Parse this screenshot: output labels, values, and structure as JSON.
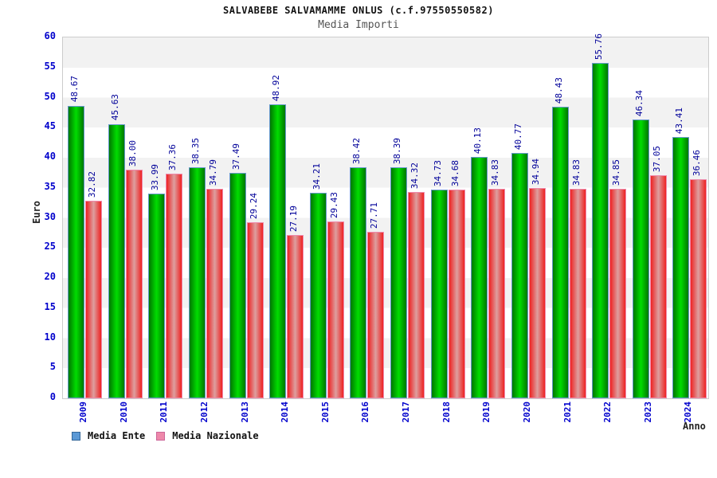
{
  "header": {
    "title": "SALVABEBE SALVAMAMME ONLUS (c.f.97550550582)",
    "subtitle": "Media Importi"
  },
  "legend": {
    "items": [
      {
        "label": "Media Ente",
        "swatch_fill": "#5b99d6",
        "swatch_border": "#336699"
      },
      {
        "label": "Media Nazionale",
        "swatch_fill": "#ee88aa",
        "swatch_border": "#cc6699"
      }
    ]
  },
  "axes": {
    "y_title": "Euro",
    "x_title": "Anno",
    "y_ticks": [
      0,
      5,
      10,
      15,
      20,
      25,
      30,
      35,
      40,
      45,
      50,
      55,
      60
    ]
  },
  "chart_data": {
    "type": "bar",
    "title": "Media Importi",
    "xlabel": "Anno",
    "ylabel": "Euro",
    "ylim": [
      0,
      60
    ],
    "ytick_step": 5,
    "grid": "horizontal-bands-every-5",
    "legend_position": "bottom-left",
    "value_labels": "rotated-90-above-bars",
    "categories": [
      "2009",
      "2010",
      "2011",
      "2012",
      "2013",
      "2014",
      "2015",
      "2016",
      "2017",
      "2018",
      "2019",
      "2020",
      "2021",
      "2022",
      "2023",
      "2024"
    ],
    "series": [
      {
        "name": "Media Ente",
        "values": [
          48.67,
          45.63,
          33.99,
          38.35,
          37.49,
          48.92,
          34.21,
          38.42,
          38.39,
          34.73,
          40.13,
          40.77,
          48.43,
          55.76,
          46.34,
          43.41
        ],
        "fill_edge": "#007700",
        "fill_center": "#00dd00",
        "border": "#6699cc"
      },
      {
        "name": "Media Nazionale",
        "values": [
          32.82,
          38.0,
          37.36,
          34.79,
          29.24,
          27.19,
          29.43,
          27.71,
          34.32,
          34.68,
          34.83,
          34.94,
          34.83,
          34.85,
          37.05,
          36.46
        ],
        "fill_edge": "#ee2222",
        "fill_center": "#dd9f9f",
        "border": "#ee88aa"
      }
    ],
    "colors": {
      "tick_label": "#0000cc",
      "value_label": "#000099",
      "band_gray": "#f2f2f2",
      "plot_border": "#cccccc",
      "subtitle": "#555555"
    }
  }
}
